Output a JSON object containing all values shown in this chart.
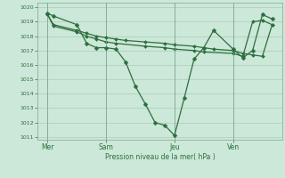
{
  "background_color": "#cce8d8",
  "grid_color": "#aaccbb",
  "line_color": "#2d6e3e",
  "marker_color": "#2d6e3e",
  "xlabel": "Pression niveau de la mer( hPa )",
  "ylim": [
    1011,
    1020
  ],
  "yticks": [
    1011,
    1012,
    1013,
    1014,
    1015,
    1016,
    1017,
    1018,
    1019,
    1020
  ],
  "day_labels": [
    "Mer",
    "Sam",
    "Jeu",
    "Ven"
  ],
  "day_positions": [
    0.0,
    3.0,
    6.5,
    9.5
  ],
  "series": [
    {
      "x": [
        0.0,
        0.3,
        1.5,
        2.0,
        2.5,
        3.0,
        3.5,
        4.0,
        4.5,
        5.0,
        5.5,
        6.0,
        6.5,
        7.0,
        7.5,
        8.0,
        8.5,
        9.5,
        10.0,
        10.5,
        11.0,
        11.5
      ],
      "y": [
        1019.6,
        1019.4,
        1018.8,
        1017.5,
        1017.2,
        1017.2,
        1017.1,
        1016.2,
        1014.5,
        1013.3,
        1012.0,
        1011.8,
        1011.1,
        1013.7,
        1016.4,
        1017.2,
        1018.4,
        1017.1,
        1016.5,
        1017.0,
        1019.5,
        1019.2
      ]
    },
    {
      "x": [
        0.0,
        0.3,
        1.5,
        2.0,
        2.5,
        3.0,
        3.5,
        4.0,
        5.0,
        6.0,
        6.5,
        7.5,
        8.0,
        8.5,
        9.5,
        10.0,
        10.5,
        11.0,
        11.5
      ],
      "y": [
        1019.5,
        1018.8,
        1018.4,
        1018.2,
        1018.0,
        1017.9,
        1017.8,
        1017.7,
        1017.6,
        1017.5,
        1017.4,
        1017.3,
        1017.2,
        1017.1,
        1017.0,
        1016.8,
        1016.7,
        1016.6,
        1018.8
      ]
    },
    {
      "x": [
        0.0,
        0.3,
        1.5,
        2.0,
        2.5,
        3.0,
        3.5,
        5.0,
        6.0,
        6.5,
        7.5,
        8.0,
        9.5,
        10.0,
        10.5,
        11.0,
        11.5
      ],
      "y": [
        1019.5,
        1018.7,
        1018.3,
        1018.0,
        1017.8,
        1017.6,
        1017.5,
        1017.3,
        1017.2,
        1017.1,
        1017.0,
        1016.9,
        1016.8,
        1016.6,
        1019.0,
        1019.1,
        1018.8
      ]
    }
  ]
}
